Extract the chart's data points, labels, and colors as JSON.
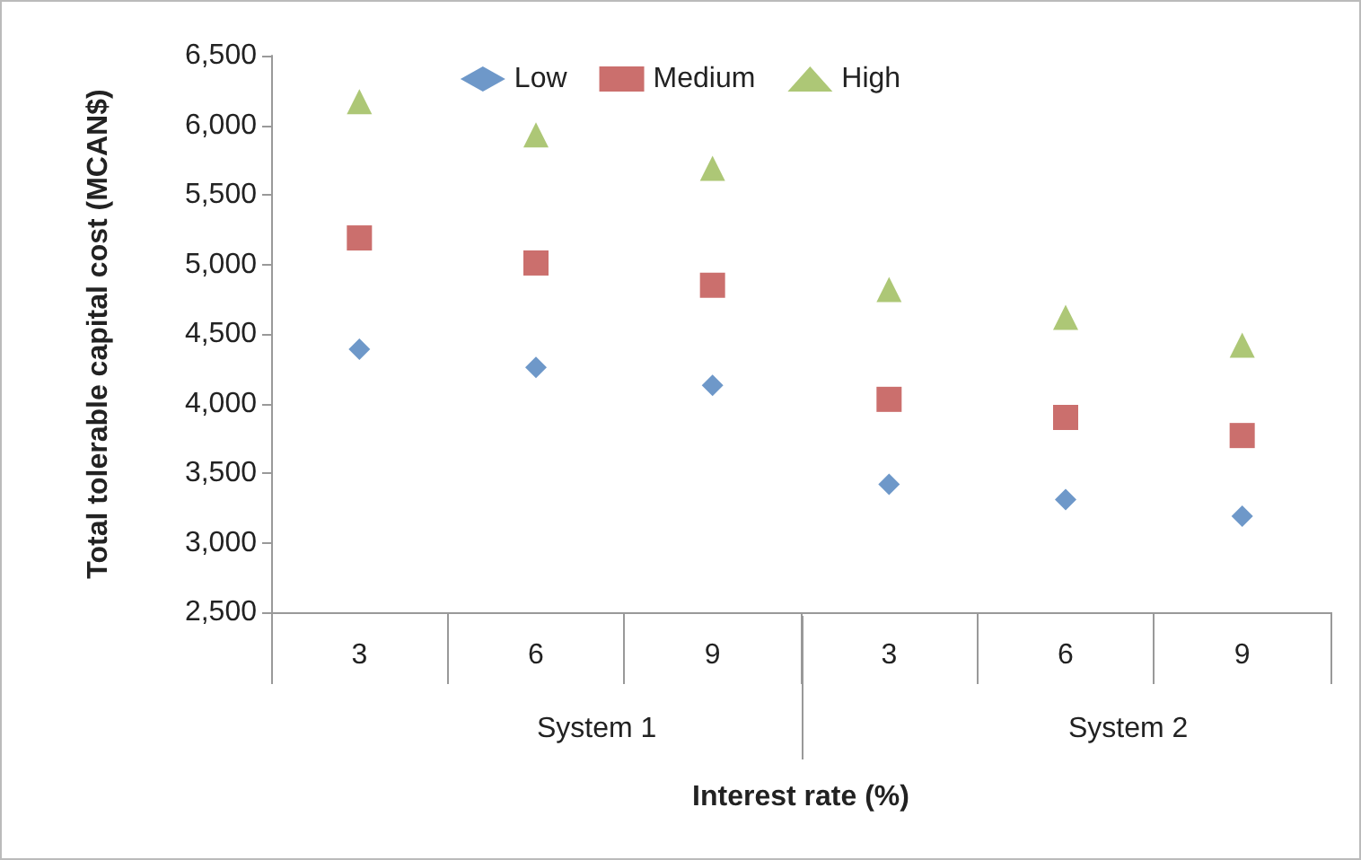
{
  "chart_data": {
    "type": "scatter",
    "xlabel": "Interest rate (%)",
    "ylabel": "Total tolerable capital cost (MCAN$)",
    "categories": [
      "3",
      "6",
      "9",
      "3",
      "6",
      "9"
    ],
    "annotations": [
      "System 1",
      "System 2"
    ],
    "series": [
      {
        "name": "Low",
        "color": "#4a7ebb",
        "marker": "diamond",
        "values": [
          4390,
          4260,
          4130,
          3420,
          3310,
          3190
        ]
      },
      {
        "name": "Medium",
        "color": "#be4b48",
        "marker": "square",
        "values": [
          5190,
          5010,
          4850,
          4030,
          3900,
          3770
        ]
      },
      {
        "name": "High",
        "color": "#98b954",
        "marker": "triangle",
        "values": [
          6170,
          5930,
          5690,
          4820,
          4620,
          4420
        ]
      }
    ],
    "ylim": [
      2500,
      6500
    ],
    "yticks": [
      {
        "value": 2500,
        "label": "2,500"
      },
      {
        "value": 3000,
        "label": "3,000"
      },
      {
        "value": 3500,
        "label": "3,500"
      },
      {
        "value": 4000,
        "label": "4,000"
      },
      {
        "value": 4500,
        "label": "4,500"
      },
      {
        "value": 5000,
        "label": "5,000"
      },
      {
        "value": 5500,
        "label": "5,500"
      },
      {
        "value": 6000,
        "label": "6,000"
      },
      {
        "value": 6500,
        "label": "6,500"
      }
    ],
    "grid": false,
    "legend": "top"
  }
}
